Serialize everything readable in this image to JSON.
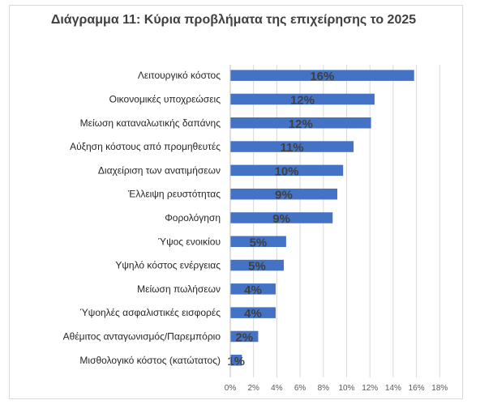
{
  "chart_data": {
    "type": "bar",
    "orientation": "horizontal",
    "title": "Διάγραμμα 11: Κύρια προβλήματα της επιχείρησης το 2025",
    "xlabel": "",
    "ylabel": "",
    "categories": [
      "Λειτουργικό κόστος",
      "Οικονομικές υποχρεώσεις",
      "Μείωση καταναλωτικής δαπάνης",
      "Αύξηση κόστους από προμηθευτές",
      "Διαχείριση των ανατιμήσεων",
      "Έλλειψη ρευστότητας",
      "Φορολόγηση",
      "Ύψος ενοικίου",
      "Υψηλό κόστος ενέργειας",
      "Μείωση πωλήσεων",
      "Ύψοηλές ασφαλιστικές εισφορές",
      "Αθέμιτος ανταγωνισμός/Παρεμπόριο",
      "Μισθολογικό κόστος (κατώτατος)"
    ],
    "values": [
      15.8,
      12.4,
      12.1,
      10.6,
      9.7,
      9.2,
      8.8,
      4.8,
      4.6,
      3.9,
      3.9,
      2.4,
      1.0
    ],
    "data_labels": [
      "16%",
      "12%",
      "12%",
      "11%",
      "10%",
      "9%",
      "9%",
      "5%",
      "5%",
      "4%",
      "4%",
      "2%",
      "1%"
    ],
    "xlim": [
      0,
      18
    ],
    "x_ticks": [
      "0%",
      "2%",
      "4%",
      "6%",
      "8%",
      "10%",
      "12%",
      "14%",
      "16%",
      "18%"
    ],
    "grid": "vertical",
    "legend": "none",
    "bar_color": "#4472c4",
    "grid_color": "#d9d9d9"
  }
}
